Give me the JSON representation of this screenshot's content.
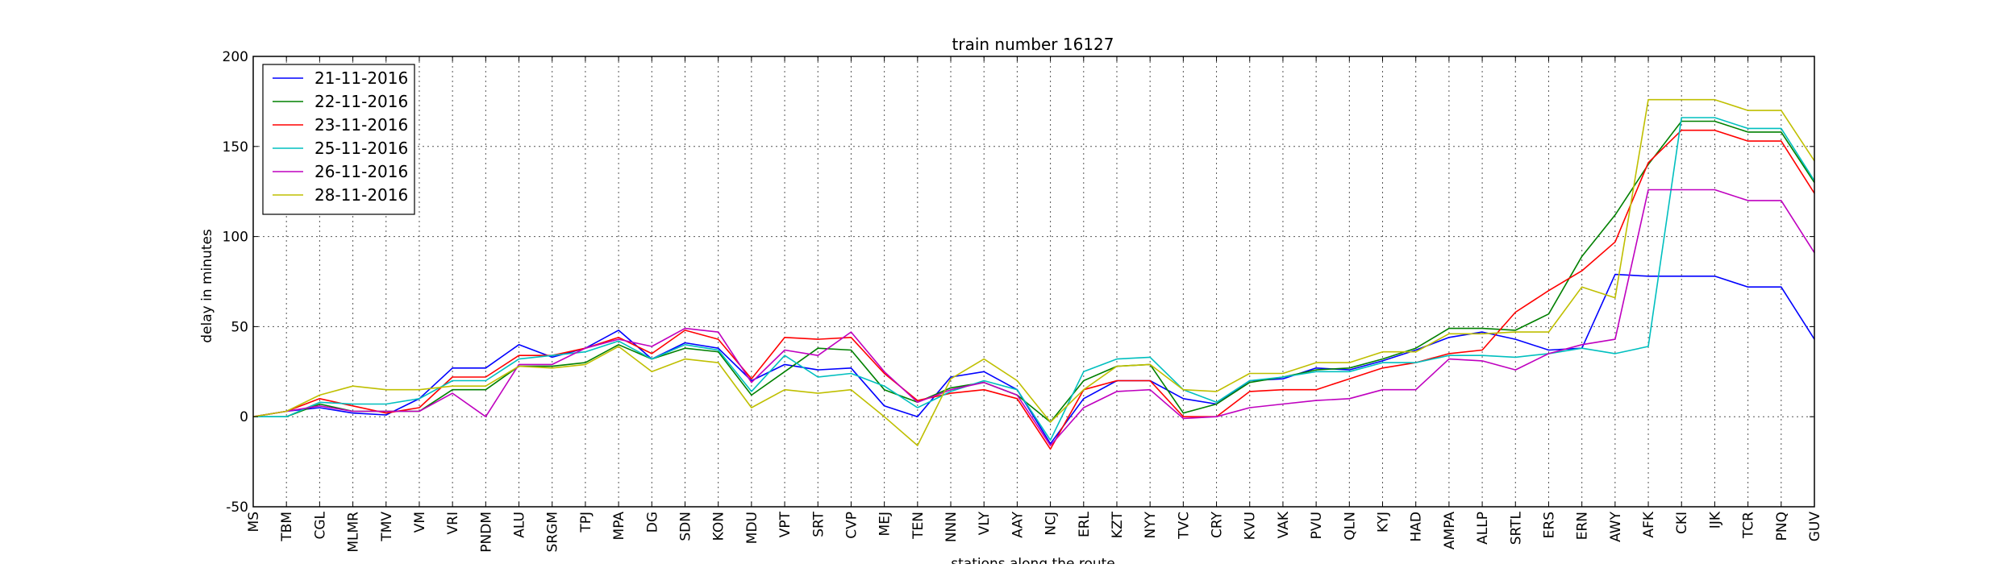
{
  "chart_data": {
    "type": "line",
    "title": "train number 16127",
    "xlabel": "stations along the route",
    "ylabel": "delay in minutes",
    "ylim": [
      -50,
      200
    ],
    "yticks": [
      -50,
      0,
      50,
      100,
      150,
      200
    ],
    "grid": true,
    "legend_position": "top-left",
    "categories": [
      "MS",
      "TBM",
      "CGL",
      "MLMR",
      "TMV",
      "VM",
      "VRI",
      "PNDM",
      "ALU",
      "SRGM",
      "TPJ",
      "MPA",
      "DG",
      "SDN",
      "KON",
      "MDU",
      "VPT",
      "SRT",
      "CVP",
      "MEJ",
      "TEN",
      "NNN",
      "VLY",
      "AAY",
      "NCJ",
      "ERL",
      "KZT",
      "NYY",
      "TVC",
      "CRY",
      "KVU",
      "VAK",
      "PVU",
      "QLN",
      "KYJ",
      "HAD",
      "AMPA",
      "ALLP",
      "SRTL",
      "ERS",
      "ERN",
      "AWY",
      "AFK",
      "CKI",
      "IJK",
      "TCR",
      "PNQ",
      "GUV"
    ],
    "series": [
      {
        "name": "21-11-2016",
        "color": "#0000ff",
        "values": [
          0,
          3,
          5,
          2,
          1,
          10,
          27,
          27,
          40,
          33,
          38,
          48,
          32,
          41,
          38,
          20,
          29,
          26,
          27,
          6,
          0,
          22,
          25,
          15,
          -15,
          10,
          20,
          20,
          10,
          7,
          20,
          21,
          27,
          26,
          31,
          37,
          44,
          47,
          43,
          37,
          38,
          79,
          78,
          78,
          78,
          72,
          72,
          43
        ]
      },
      {
        "name": "22-11-2016",
        "color": "#008000",
        "values": [
          0,
          0,
          7,
          3,
          3,
          3,
          15,
          15,
          28,
          28,
          30,
          40,
          32,
          38,
          36,
          12,
          25,
          38,
          37,
          15,
          8,
          16,
          19,
          12,
          -3,
          20,
          28,
          29,
          2,
          7,
          19,
          22,
          26,
          27,
          32,
          38,
          49,
          49,
          48,
          57,
          89,
          112,
          140,
          164,
          164,
          158,
          158,
          130
        ]
      },
      {
        "name": "23-11-2016",
        "color": "#ff0000",
        "values": [
          0,
          3,
          10,
          6,
          2,
          5,
          22,
          22,
          34,
          34,
          38,
          44,
          35,
          48,
          43,
          21,
          44,
          43,
          44,
          24,
          9,
          13,
          15,
          10,
          -18,
          15,
          20,
          20,
          0,
          0,
          14,
          15,
          15,
          21,
          27,
          30,
          35,
          37,
          58,
          70,
          81,
          97,
          141,
          159,
          159,
          153,
          153,
          124
        ]
      },
      {
        "name": "25-11-2016",
        "color": "#00bfbf",
        "values": [
          0,
          0,
          8,
          7,
          7,
          10,
          20,
          20,
          32,
          34,
          36,
          42,
          32,
          40,
          37,
          14,
          34,
          22,
          24,
          17,
          5,
          14,
          20,
          15,
          -13,
          25,
          32,
          33,
          15,
          8,
          20,
          22,
          25,
          25,
          30,
          30,
          34,
          34,
          33,
          35,
          38,
          35,
          39,
          166,
          166,
          160,
          160,
          131
        ]
      },
      {
        "name": "26-11-2016",
        "color": "#bf00bf",
        "values": [
          0,
          3,
          6,
          3,
          3,
          3,
          13,
          0,
          29,
          29,
          38,
          43,
          39,
          49,
          47,
          19,
          37,
          34,
          47,
          25,
          8,
          15,
          19,
          12,
          -16,
          5,
          14,
          15,
          -1,
          0,
          5,
          7,
          9,
          10,
          15,
          15,
          32,
          31,
          26,
          35,
          40,
          43,
          126,
          126,
          126,
          120,
          120,
          91
        ]
      },
      {
        "name": "28-11-2016",
        "color": "#bfbf00",
        "values": [
          0,
          3,
          12,
          17,
          15,
          15,
          17,
          17,
          28,
          27,
          29,
          39,
          25,
          32,
          30,
          5,
          15,
          13,
          15,
          0,
          -16,
          21,
          32,
          20,
          -3,
          15,
          28,
          29,
          15,
          14,
          24,
          24,
          30,
          30,
          36,
          36,
          46,
          46,
          47,
          47,
          72,
          66,
          176,
          176,
          176,
          170,
          170,
          142
        ]
      }
    ]
  }
}
